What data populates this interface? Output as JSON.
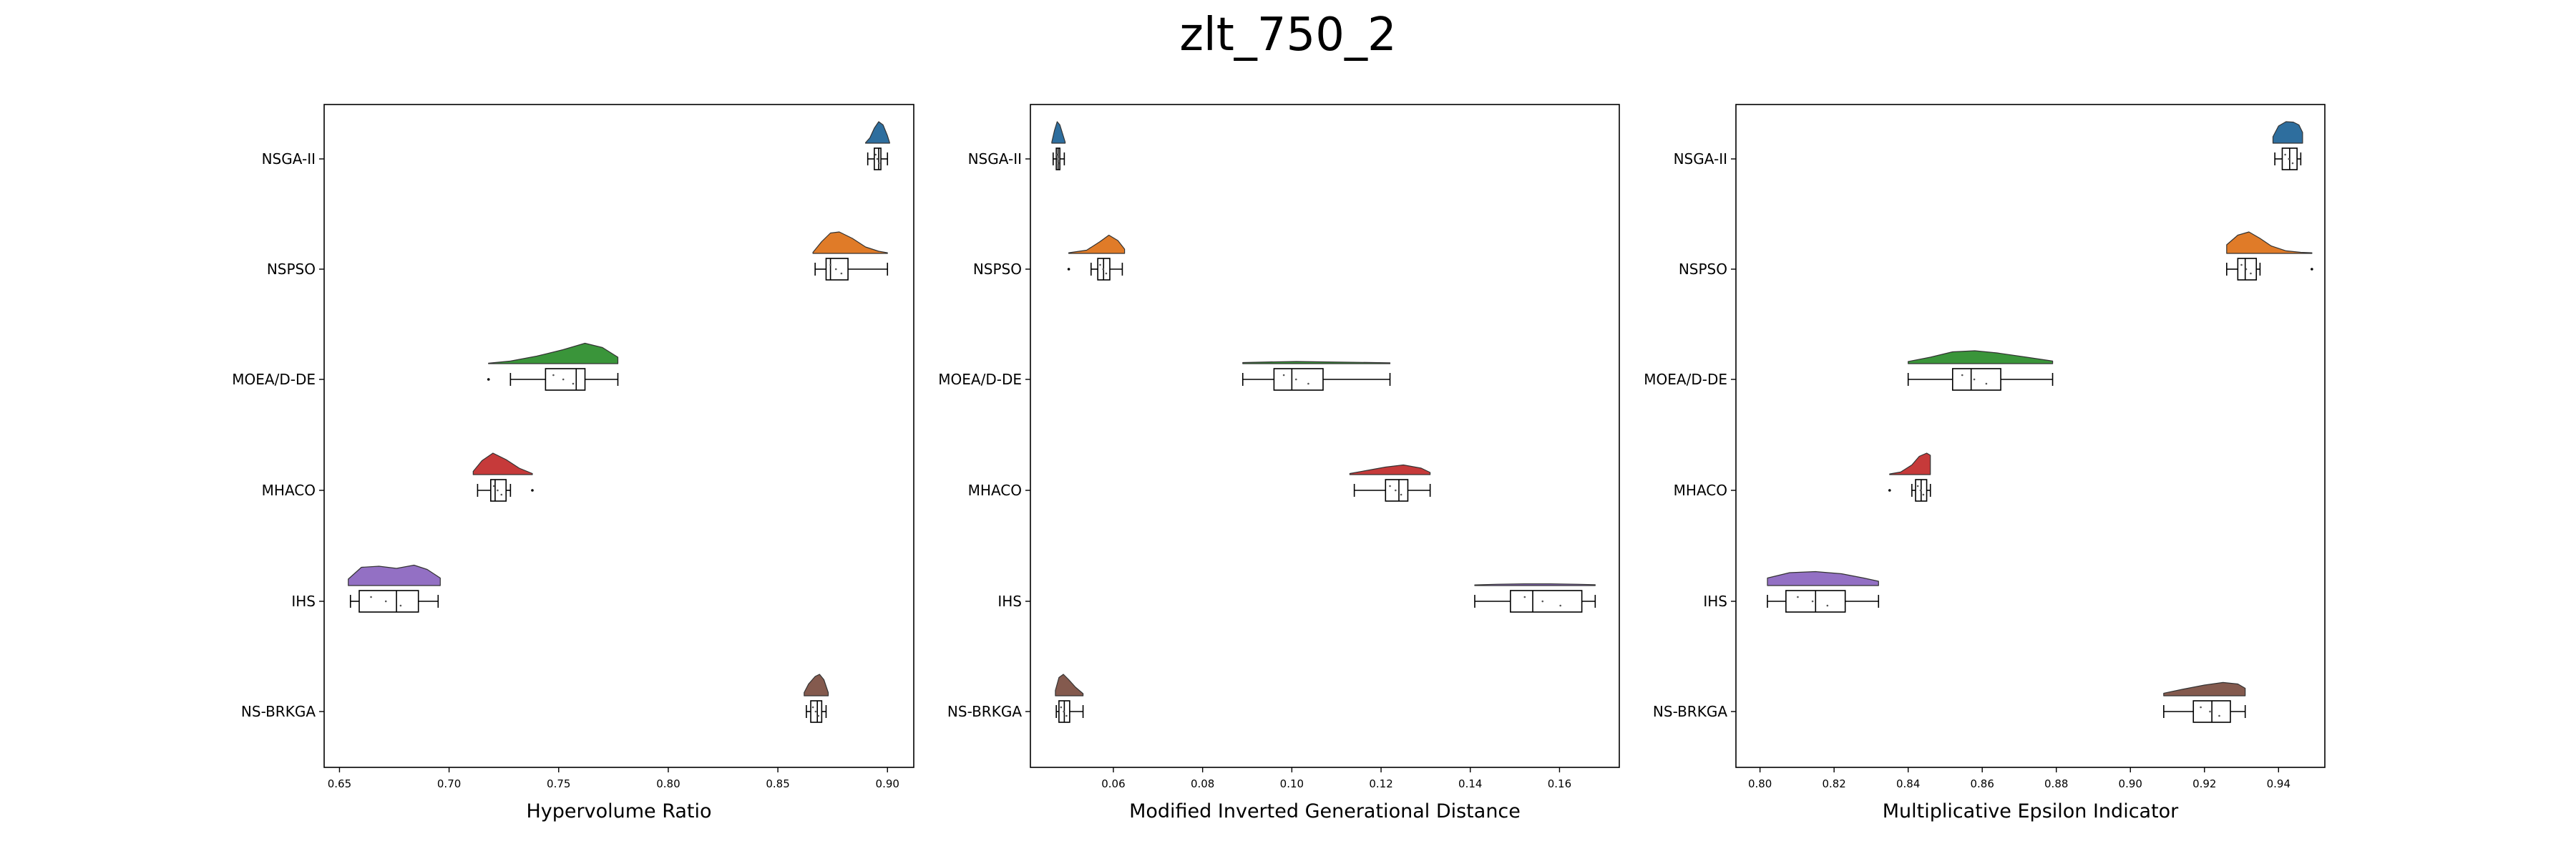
{
  "figure_title": "zlt_750_2",
  "categories": [
    "NSGA-II",
    "NSPSO",
    "MOEA/D-DE",
    "MHACO",
    "IHS",
    "NS-BRKGA"
  ],
  "colors": [
    "#2e6e9e",
    "#e07b28",
    "#3a953a",
    "#c63a3a",
    "#9370c4",
    "#845a4e"
  ],
  "chart_data": [
    {
      "type": "raincloud",
      "xlabel": "Hypervolume Ratio",
      "xlim": [
        0.643,
        0.912
      ],
      "xticks": [
        0.65,
        0.7,
        0.75,
        0.8,
        0.85,
        0.9
      ],
      "xtick_labels": [
        "0.65",
        "0.70",
        "0.75",
        "0.80",
        "0.85",
        "0.90"
      ],
      "series": [
        {
          "name": "NSGA-II",
          "min": 0.891,
          "q1": 0.894,
          "median": 0.896,
          "q3": 0.897,
          "max": 0.9,
          "outliers": [],
          "density": [
            [
              0.89,
              0.02
            ],
            [
              0.892,
              0.25
            ],
            [
              0.894,
              0.7
            ],
            [
              0.896,
              1.0
            ],
            [
              0.898,
              0.85
            ],
            [
              0.9,
              0.35
            ],
            [
              0.901,
              0.02
            ]
          ]
        },
        {
          "name": "NSPSO",
          "min": 0.867,
          "q1": 0.872,
          "median": 0.874,
          "q3": 0.882,
          "max": 0.9,
          "outliers": [],
          "density": [
            [
              0.866,
              0.05
            ],
            [
              0.87,
              0.55
            ],
            [
              0.874,
              0.95
            ],
            [
              0.878,
              1.0
            ],
            [
              0.884,
              0.7
            ],
            [
              0.89,
              0.3
            ],
            [
              0.896,
              0.1
            ],
            [
              0.9,
              0.03
            ]
          ]
        },
        {
          "name": "MOEA/D-DE",
          "min": 0.728,
          "q1": 0.744,
          "median": 0.758,
          "q3": 0.762,
          "max": 0.777,
          "outliers": [
            0.718
          ],
          "density": [
            [
              0.718,
              0.02
            ],
            [
              0.728,
              0.12
            ],
            [
              0.74,
              0.35
            ],
            [
              0.752,
              0.65
            ],
            [
              0.762,
              0.95
            ],
            [
              0.77,
              0.75
            ],
            [
              0.777,
              0.3
            ]
          ]
        },
        {
          "name": "MHACO",
          "min": 0.713,
          "q1": 0.719,
          "median": 0.721,
          "q3": 0.726,
          "max": 0.728,
          "outliers": [
            0.738
          ],
          "density": [
            [
              0.711,
              0.15
            ],
            [
              0.715,
              0.65
            ],
            [
              0.72,
              1.0
            ],
            [
              0.726,
              0.7
            ],
            [
              0.732,
              0.3
            ],
            [
              0.738,
              0.05
            ]
          ]
        },
        {
          "name": "IHS",
          "min": 0.655,
          "q1": 0.659,
          "median": 0.676,
          "q3": 0.686,
          "max": 0.695,
          "outliers": [],
          "density": [
            [
              0.654,
              0.3
            ],
            [
              0.66,
              0.85
            ],
            [
              0.668,
              0.9
            ],
            [
              0.676,
              0.8
            ],
            [
              0.684,
              0.95
            ],
            [
              0.69,
              0.75
            ],
            [
              0.696,
              0.35
            ]
          ]
        },
        {
          "name": "NS-BRKGA",
          "min": 0.863,
          "q1": 0.865,
          "median": 0.868,
          "q3": 0.87,
          "max": 0.872,
          "outliers": [],
          "density": [
            [
              0.862,
              0.15
            ],
            [
              0.864,
              0.55
            ],
            [
              0.867,
              0.9
            ],
            [
              0.869,
              1.0
            ],
            [
              0.871,
              0.75
            ],
            [
              0.873,
              0.15
            ]
          ]
        }
      ]
    },
    {
      "type": "raincloud",
      "xlabel": "Modified Inverted Generational Distance",
      "xlim": [
        0.0414,
        0.1734
      ],
      "xticks": [
        0.06,
        0.08,
        0.1,
        0.12,
        0.14,
        0.16
      ],
      "xtick_labels": [
        "0.06",
        "0.08",
        "0.10",
        "0.12",
        "0.14",
        "0.16"
      ],
      "series": [
        {
          "name": "NSGA-II",
          "min": 0.0465,
          "q1": 0.0472,
          "median": 0.0476,
          "q3": 0.048,
          "max": 0.049,
          "outliers": [],
          "density": [
            [
              0.0462,
              0.05
            ],
            [
              0.0468,
              0.6
            ],
            [
              0.0474,
              1.0
            ],
            [
              0.048,
              0.85
            ],
            [
              0.0486,
              0.45
            ],
            [
              0.0492,
              0.05
            ]
          ]
        },
        {
          "name": "NSPSO",
          "min": 0.055,
          "q1": 0.0565,
          "median": 0.0578,
          "q3": 0.0592,
          "max": 0.062,
          "outliers": [
            0.05
          ],
          "density": [
            [
              0.05,
              0.03
            ],
            [
              0.054,
              0.15
            ],
            [
              0.057,
              0.55
            ],
            [
              0.059,
              0.85
            ],
            [
              0.061,
              0.6
            ],
            [
              0.0625,
              0.2
            ]
          ]
        },
        {
          "name": "MOEA/D-DE",
          "min": 0.089,
          "q1": 0.096,
          "median": 0.1,
          "q3": 0.107,
          "max": 0.122,
          "outliers": [],
          "density": [
            [
              0.089,
              0.05
            ],
            [
              0.095,
              0.08
            ],
            [
              0.101,
              0.1
            ],
            [
              0.108,
              0.08
            ],
            [
              0.115,
              0.06
            ],
            [
              0.122,
              0.04
            ]
          ]
        },
        {
          "name": "MHACO",
          "min": 0.114,
          "q1": 0.121,
          "median": 0.124,
          "q3": 0.126,
          "max": 0.131,
          "outliers": [],
          "density": [
            [
              0.113,
              0.05
            ],
            [
              0.117,
              0.2
            ],
            [
              0.121,
              0.35
            ],
            [
              0.125,
              0.45
            ],
            [
              0.129,
              0.3
            ],
            [
              0.131,
              0.1
            ]
          ]
        },
        {
          "name": "IHS",
          "min": 0.141,
          "q1": 0.149,
          "median": 0.154,
          "q3": 0.165,
          "max": 0.168,
          "outliers": [],
          "density": [
            [
              0.141,
              0.03
            ],
            [
              0.146,
              0.06
            ],
            [
              0.152,
              0.08
            ],
            [
              0.158,
              0.08
            ],
            [
              0.164,
              0.06
            ],
            [
              0.168,
              0.04
            ]
          ]
        },
        {
          "name": "NS-BRKGA",
          "min": 0.0472,
          "q1": 0.0478,
          "median": 0.049,
          "q3": 0.0502,
          "max": 0.0532,
          "outliers": [],
          "density": [
            [
              0.047,
              0.25
            ],
            [
              0.0478,
              0.85
            ],
            [
              0.0488,
              1.0
            ],
            [
              0.05,
              0.75
            ],
            [
              0.0515,
              0.4
            ],
            [
              0.0532,
              0.1
            ]
          ]
        }
      ]
    },
    {
      "type": "raincloud",
      "xlabel": "Multiplicative Epsilon Indicator",
      "xlim": [
        0.7935,
        0.9525
      ],
      "xticks": [
        0.8,
        0.82,
        0.84,
        0.86,
        0.88,
        0.9,
        0.92,
        0.94
      ],
      "xtick_labels": [
        "0.80",
        "0.82",
        "0.84",
        "0.86",
        "0.88",
        "0.90",
        "0.92",
        "0.94"
      ],
      "series": [
        {
          "name": "NSGA-II",
          "min": 0.939,
          "q1": 0.941,
          "median": 0.943,
          "q3": 0.945,
          "max": 0.946,
          "outliers": [],
          "density": [
            [
              0.9385,
              0.3
            ],
            [
              0.94,
              0.8
            ],
            [
              0.942,
              1.0
            ],
            [
              0.944,
              0.98
            ],
            [
              0.9455,
              0.85
            ],
            [
              0.9465,
              0.5
            ]
          ]
        },
        {
          "name": "NSPSO",
          "min": 0.926,
          "q1": 0.929,
          "median": 0.931,
          "q3": 0.934,
          "max": 0.935,
          "outliers": [
            0.949
          ],
          "density": [
            [
              0.926,
              0.4
            ],
            [
              0.929,
              0.85
            ],
            [
              0.932,
              1.0
            ],
            [
              0.935,
              0.7
            ],
            [
              0.938,
              0.35
            ],
            [
              0.942,
              0.12
            ],
            [
              0.946,
              0.05
            ],
            [
              0.949,
              0.03
            ]
          ]
        },
        {
          "name": "MOEA/D-DE",
          "min": 0.84,
          "q1": 0.852,
          "median": 0.857,
          "q3": 0.865,
          "max": 0.879,
          "outliers": [],
          "density": [
            [
              0.84,
              0.1
            ],
            [
              0.846,
              0.3
            ],
            [
              0.852,
              0.55
            ],
            [
              0.858,
              0.6
            ],
            [
              0.864,
              0.5
            ],
            [
              0.872,
              0.3
            ],
            [
              0.879,
              0.12
            ]
          ]
        },
        {
          "name": "MHACO",
          "min": 0.841,
          "q1": 0.842,
          "median": 0.8435,
          "q3": 0.845,
          "max": 0.846,
          "outliers": [
            0.835
          ],
          "density": [
            [
              0.835,
              0.03
            ],
            [
              0.838,
              0.12
            ],
            [
              0.841,
              0.45
            ],
            [
              0.843,
              0.85
            ],
            [
              0.845,
              1.0
            ],
            [
              0.846,
              0.9
            ]
          ]
        },
        {
          "name": "IHS",
          "min": 0.802,
          "q1": 0.807,
          "median": 0.815,
          "q3": 0.823,
          "max": 0.832,
          "outliers": [],
          "density": [
            [
              0.802,
              0.35
            ],
            [
              0.808,
              0.6
            ],
            [
              0.815,
              0.65
            ],
            [
              0.822,
              0.55
            ],
            [
              0.828,
              0.35
            ],
            [
              0.832,
              0.2
            ]
          ]
        },
        {
          "name": "NS-BRKGA",
          "min": 0.909,
          "q1": 0.917,
          "median": 0.922,
          "q3": 0.927,
          "max": 0.931,
          "outliers": [],
          "density": [
            [
              0.909,
              0.12
            ],
            [
              0.914,
              0.3
            ],
            [
              0.92,
              0.5
            ],
            [
              0.925,
              0.62
            ],
            [
              0.929,
              0.55
            ],
            [
              0.931,
              0.35
            ]
          ]
        }
      ]
    }
  ]
}
